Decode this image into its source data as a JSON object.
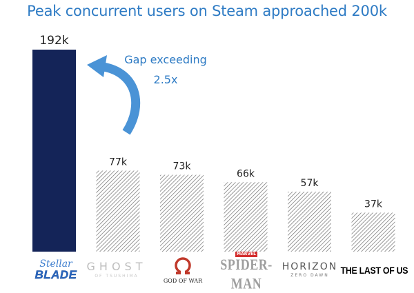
{
  "title": "Peak concurrent users on Steam approached 200k",
  "annotation": {
    "line1": "Gap exceeding",
    "line2": "2.5x"
  },
  "colors": {
    "title": "#2e7bc4",
    "highlight_bar": "#142458",
    "hatch_fill": "#ffffff",
    "hatch_stroke": "#7a7a7a",
    "arrow": "#4a93d6"
  },
  "logos": {
    "stellar": {
      "line1": "Stellar",
      "line2": "BLADE"
    },
    "ghost": {
      "line1": "GHOST",
      "line2": "OF TSUSHIMA"
    },
    "gow": {
      "mark": "Ω",
      "line1": "GOD OF WAR"
    },
    "spider": {
      "line1": "MARVEL",
      "line2": "SPIDER-MAN"
    },
    "horizon": {
      "line1": "HORIZON",
      "line2": "ZERO DAWN"
    },
    "tlou": {
      "line1": "THE LAST OF US"
    }
  },
  "chart_data": {
    "type": "bar",
    "title": "Peak concurrent users on Steam approached 200k",
    "categories": [
      "Stellar Blade",
      "Ghost of Tsushima",
      "God of War",
      "Marvel's Spider-Man",
      "Horizon Zero Dawn",
      "The Last of Us"
    ],
    "values": [
      192,
      77,
      73,
      66,
      57,
      37
    ],
    "value_labels": [
      "192k",
      "77k",
      "73k",
      "66k",
      "57k",
      "37k"
    ],
    "highlight_index": 0,
    "ylim": [
      0,
      200
    ],
    "unit": "k",
    "xlabel": "",
    "ylabel": "",
    "grid": false
  }
}
